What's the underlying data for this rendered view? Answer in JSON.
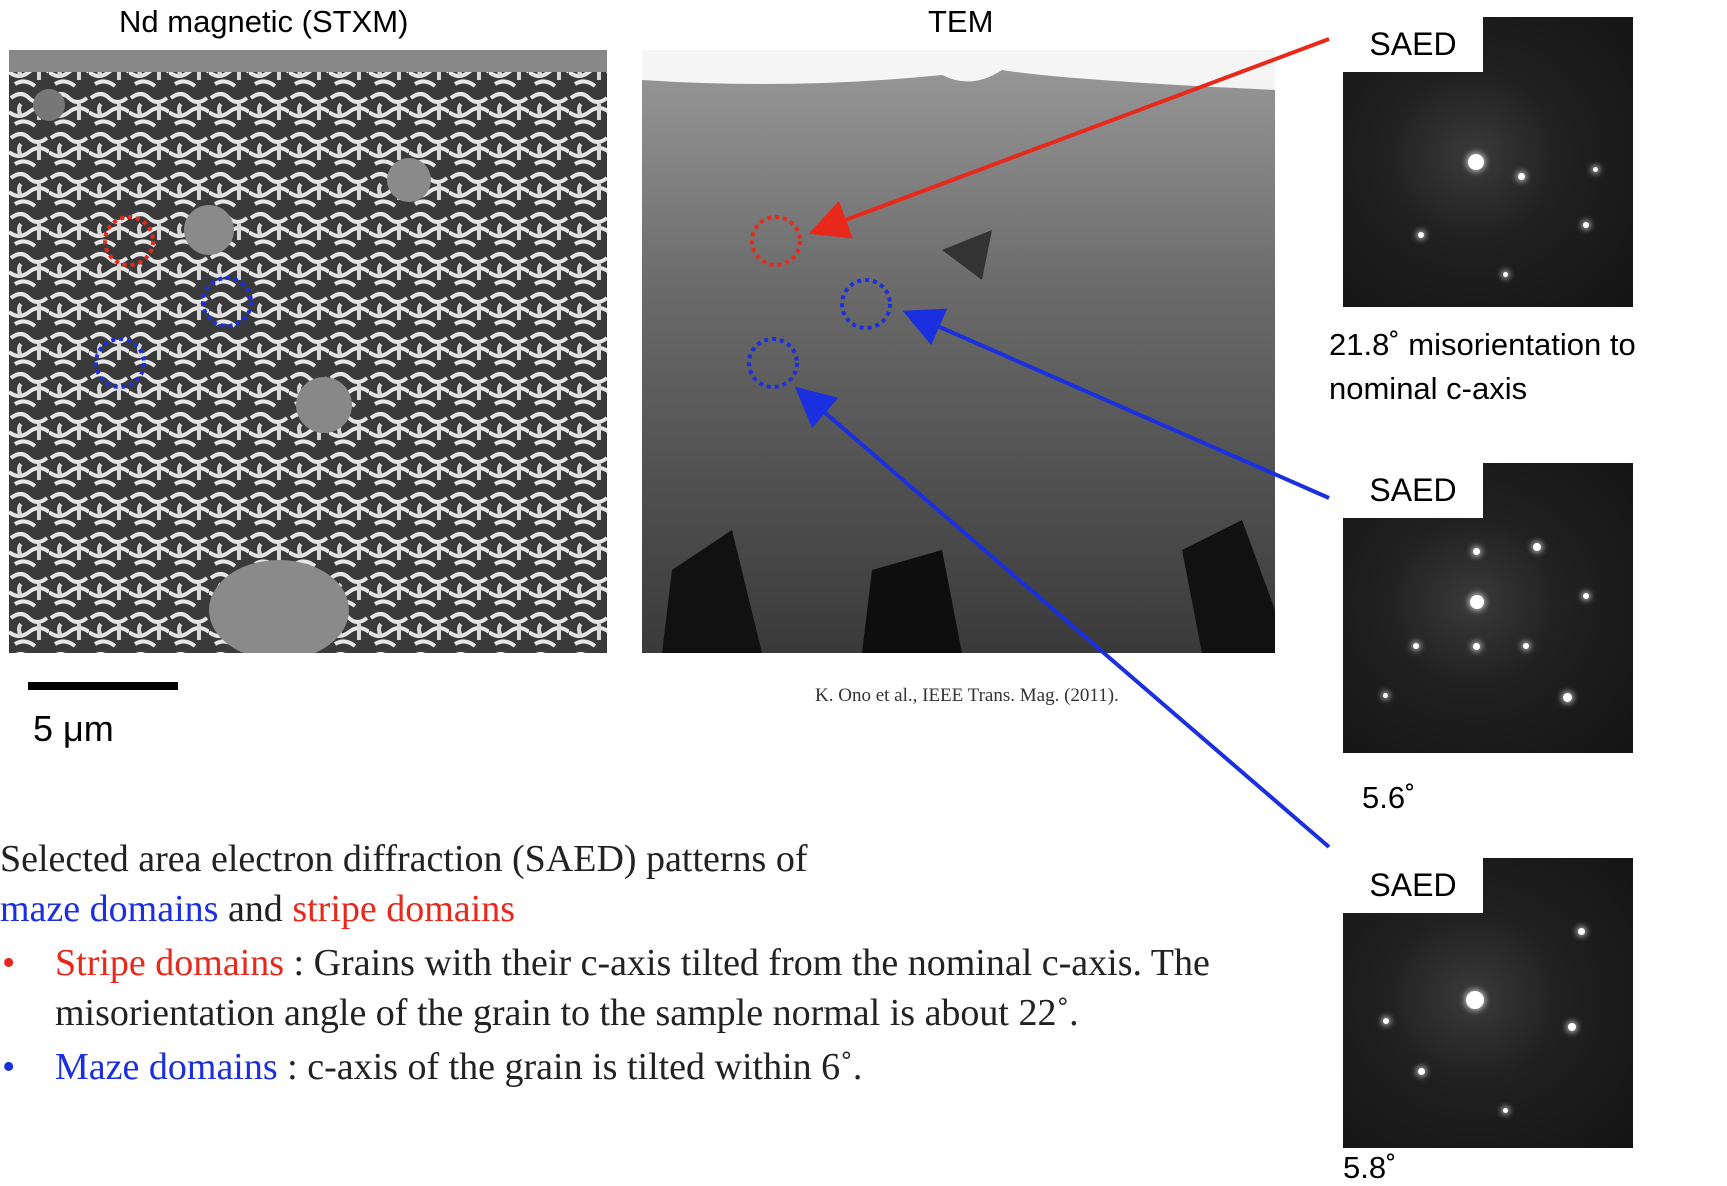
{
  "figure": {
    "stxm_title": "Nd magnetic (STXM)",
    "tem_title": "TEM",
    "scale_bar": "5 μm",
    "citation": "K. Ono et al., IEEE Trans. Mag. (2011)."
  },
  "saed": [
    {
      "label": "SAED",
      "caption": [
        "21.8˚ misorientation to",
        "nominal c-axis"
      ]
    },
    {
      "label": "SAED",
      "caption": [
        "5.6˚"
      ]
    },
    {
      "label": "SAED",
      "caption": [
        "5.8˚"
      ]
    }
  ],
  "text": {
    "intro": "Selected area electron diffraction (SAED) patterns of",
    "maze": "maze domains",
    "and": "and",
    "stripe": "stripe domains",
    "bullets": [
      {
        "term": "Stripe domains",
        "rest": " : Grains with their c-axis tilted from the nominal c-axis. The misorientation angle of the grain to the sample normal is about 22˚."
      },
      {
        "term": "Maze domains",
        "rest": " : c-axis of the grain is tilted within 6˚."
      }
    ]
  }
}
